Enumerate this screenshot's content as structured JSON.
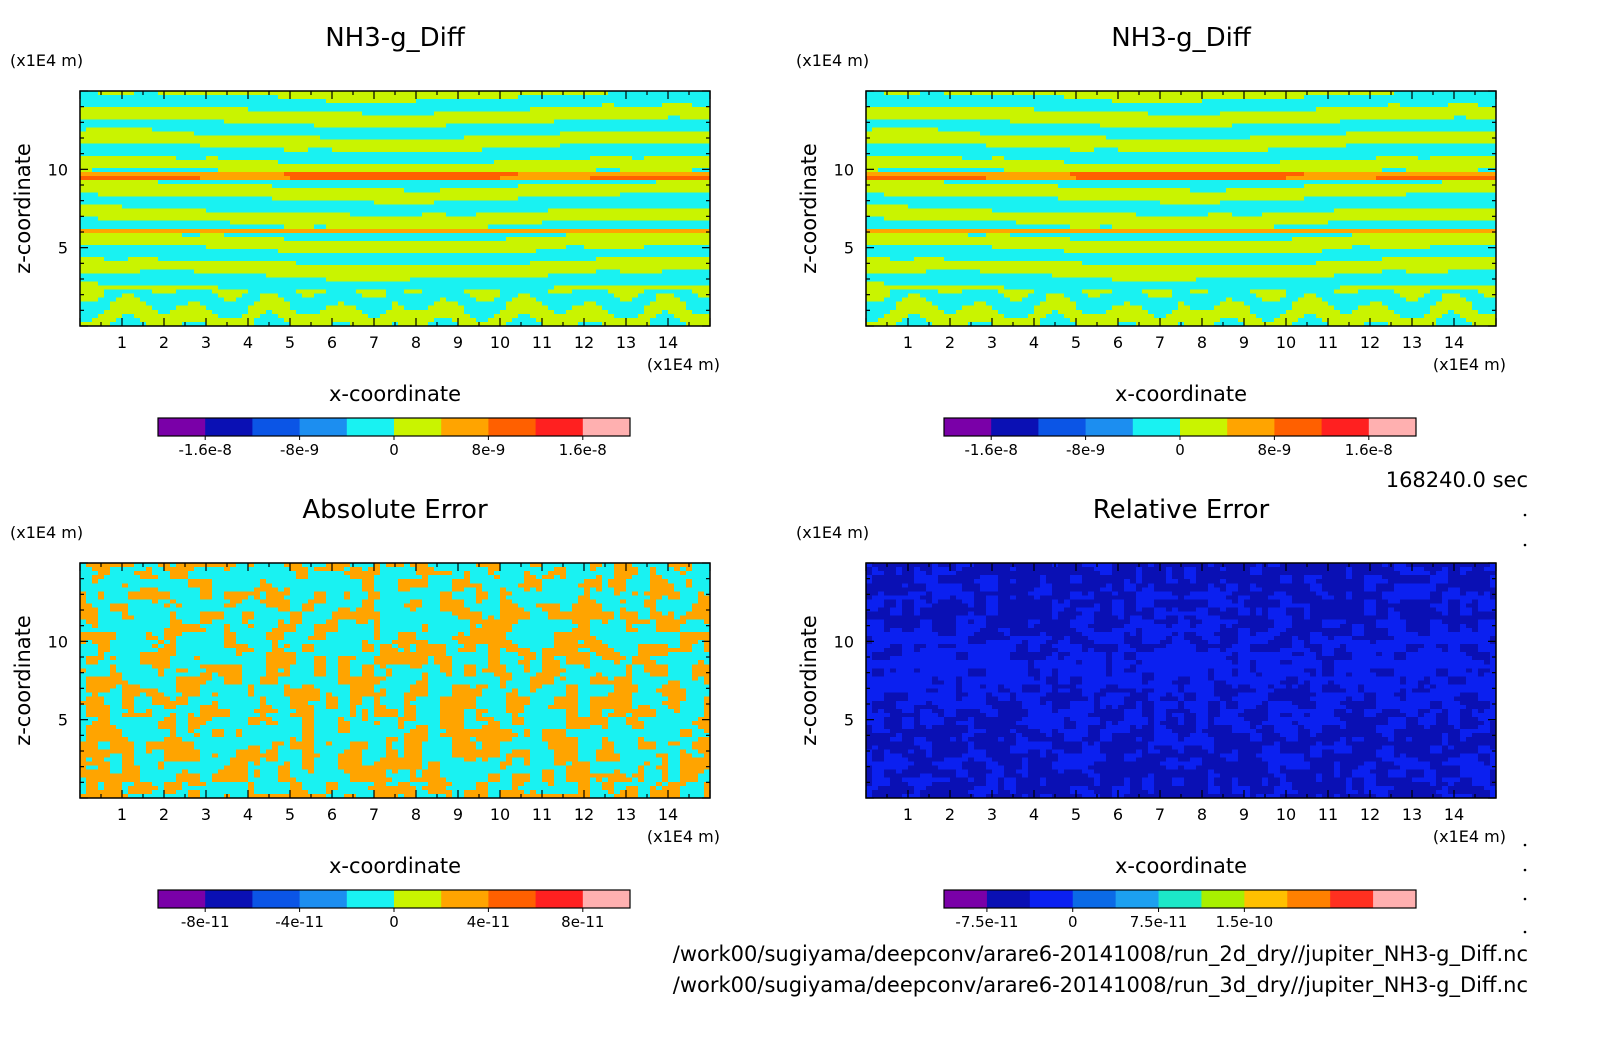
{
  "time_label": "168240.0 sec",
  "file_paths": [
    "/work00/sugiyama/deepconv/arare6-20141008/run_2d_dry//jupiter_NH3-g_Diff.nc",
    "/work00/sugiyama/deepconv/arare6-20141008/run_3d_dry//jupiter_NH3-g_Diff.nc"
  ],
  "chart_data": [
    {
      "type": "heatmap",
      "title": "NH3-g_Diff",
      "xlabel": "x-coordinate",
      "ylabel": "z-coordinate",
      "x_unit": "(x1E4 m)",
      "y_unit": "(x1E4 m)",
      "xlim": [
        0,
        15
      ],
      "ylim": [
        0,
        15
      ],
      "x_ticks": [
        "1",
        "2",
        "3",
        "4",
        "5",
        "6",
        "7",
        "8",
        "9",
        "10",
        "11",
        "12",
        "13",
        "14"
      ],
      "y_ticks": [
        "5",
        "10"
      ],
      "pattern": "layered",
      "colorbar": {
        "levels": [
          -2e-08,
          -1.6e-08,
          -1.2e-08,
          -8e-09,
          -4e-09,
          0,
          4e-09,
          8e-09,
          1.2e-08,
          1.6e-08,
          2e-08
        ],
        "colors": [
          "#7a00a8",
          "#0a10b4",
          "#0b55e6",
          "#1c8ef0",
          "#19f2f2",
          "#c9f400",
          "#ffa400",
          "#ff6000",
          "#ff2020",
          "#ffb0b0"
        ],
        "tick_labels": [
          "-1.6e-8",
          "-8e-9",
          "0",
          "8e-9",
          "1.6e-8"
        ],
        "tick_values": [
          -1.6e-08,
          -8e-09,
          0,
          8e-09,
          1.6e-08
        ]
      }
    },
    {
      "type": "heatmap",
      "title": "NH3-g_Diff",
      "xlabel": "x-coordinate",
      "ylabel": "z-coordinate",
      "x_unit": "(x1E4 m)",
      "y_unit": "(x1E4 m)",
      "xlim": [
        0,
        15
      ],
      "ylim": [
        0,
        15
      ],
      "x_ticks": [
        "1",
        "2",
        "3",
        "4",
        "5",
        "6",
        "7",
        "8",
        "9",
        "10",
        "11",
        "12",
        "13",
        "14"
      ],
      "y_ticks": [
        "5",
        "10"
      ],
      "pattern": "layered",
      "colorbar": {
        "levels": [
          -2e-08,
          -1.6e-08,
          -1.2e-08,
          -8e-09,
          -4e-09,
          0,
          4e-09,
          8e-09,
          1.2e-08,
          1.6e-08,
          2e-08
        ],
        "colors": [
          "#7a00a8",
          "#0a10b4",
          "#0b55e6",
          "#1c8ef0",
          "#19f2f2",
          "#c9f400",
          "#ffa400",
          "#ff6000",
          "#ff2020",
          "#ffb0b0"
        ],
        "tick_labels": [
          "-1.6e-8",
          "-8e-9",
          "0",
          "8e-9",
          "1.6e-8"
        ],
        "tick_values": [
          -1.6e-08,
          -8e-09,
          0,
          8e-09,
          1.6e-08
        ]
      }
    },
    {
      "type": "heatmap",
      "title": "Absolute Error",
      "xlabel": "x-coordinate",
      "ylabel": "z-coordinate",
      "x_unit": "(x1E4 m)",
      "y_unit": "(x1E4 m)",
      "xlim": [
        0,
        15
      ],
      "ylim": [
        0,
        15
      ],
      "x_ticks": [
        "1",
        "2",
        "3",
        "4",
        "5",
        "6",
        "7",
        "8",
        "9",
        "10",
        "11",
        "12",
        "13",
        "14"
      ],
      "y_ticks": [
        "5",
        "10"
      ],
      "pattern": "noisy",
      "colorbar": {
        "levels": [
          -1e-10,
          -8e-11,
          -6e-11,
          -4e-11,
          -2e-11,
          0,
          2e-11,
          4e-11,
          6e-11,
          8e-11,
          1e-10
        ],
        "colors": [
          "#7a00a8",
          "#0a10b4",
          "#0b55e6",
          "#1c8ef0",
          "#19f2f2",
          "#c9f400",
          "#ffa400",
          "#ff6000",
          "#ff2020",
          "#ffb0b0"
        ],
        "tick_labels": [
          "-8e-11",
          "-4e-11",
          "0",
          "4e-11",
          "8e-11"
        ],
        "tick_values": [
          -8e-11,
          -4e-11,
          0,
          4e-11,
          8e-11
        ]
      }
    },
    {
      "type": "heatmap",
      "title": "Relative Error",
      "xlabel": "x-coordinate",
      "ylabel": "z-coordinate",
      "x_unit": "(x1E4 m)",
      "y_unit": "(x1E4 m)",
      "xlim": [
        0,
        15
      ],
      "ylim": [
        0,
        15
      ],
      "x_ticks": [
        "1",
        "2",
        "3",
        "4",
        "5",
        "6",
        "7",
        "8",
        "9",
        "10",
        "11",
        "12",
        "13",
        "14"
      ],
      "y_ticks": [
        "5",
        "10"
      ],
      "pattern": "blue",
      "colorbar": {
        "levels": [
          -1.125e-10,
          -7.5e-11,
          -3.75e-11,
          0,
          3.75e-11,
          7.5e-11,
          1.125e-10,
          1.5e-10,
          1.875e-10,
          2.25e-10,
          2.625e-10,
          3e-10
        ],
        "colors": [
          "#7a00a8",
          "#0a10b4",
          "#0b20f0",
          "#0b6ae6",
          "#1ca0f0",
          "#1ce8c8",
          "#a8f000",
          "#ffc000",
          "#ff8000",
          "#ff3020",
          "#ffb0b0"
        ],
        "tick_labels": [
          "-7.5e-11",
          "0",
          "7.5e-11",
          "1.5e-10"
        ],
        "tick_values": [
          -7.5e-11,
          0,
          7.5e-11,
          1.5e-10
        ]
      }
    }
  ]
}
